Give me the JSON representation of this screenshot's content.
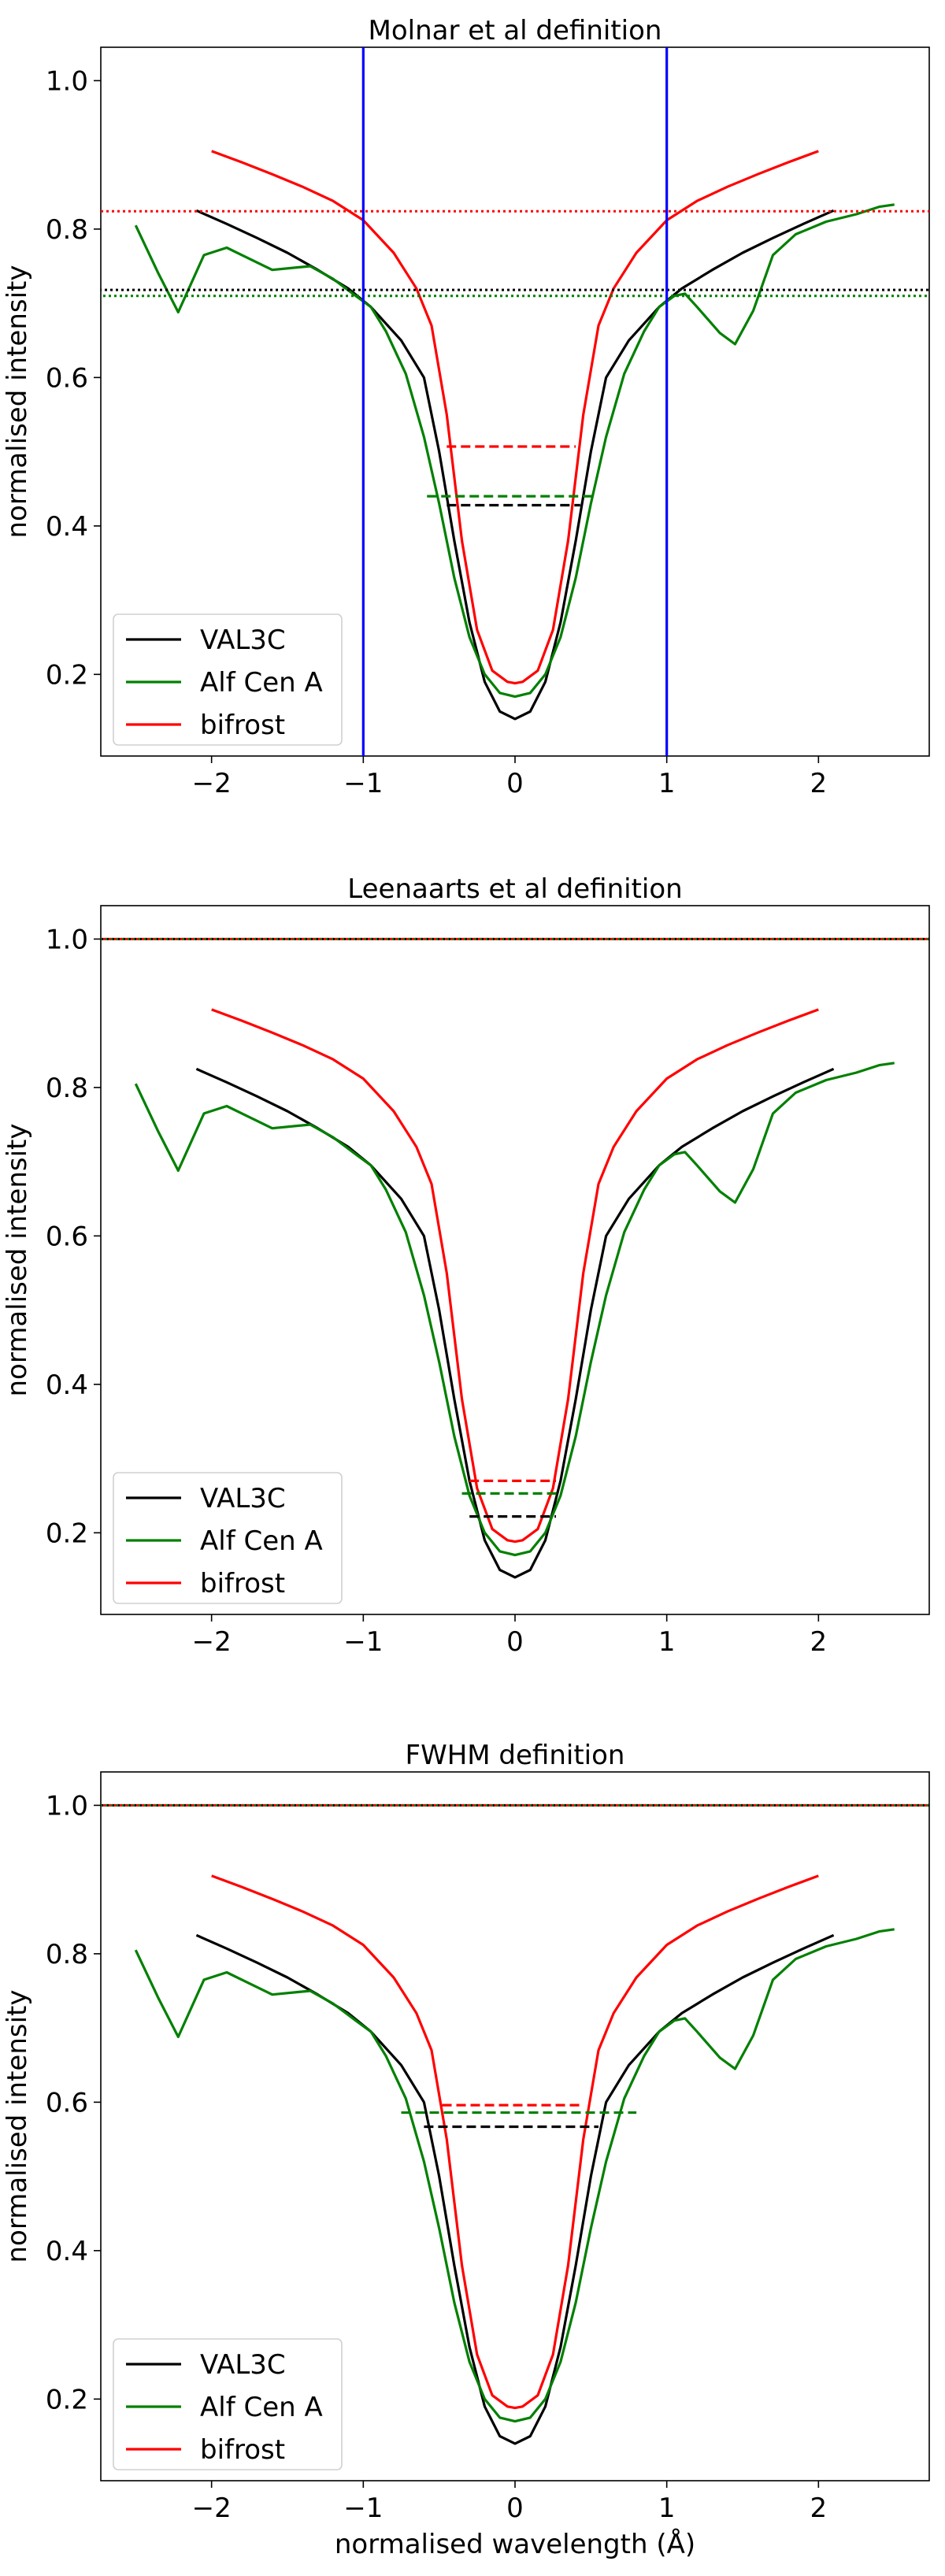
{
  "figure": {
    "xlabel": "normalised wavelength (Å)",
    "ylabel": "normalised intensity"
  },
  "chart_data": [
    {
      "type": "line",
      "title": "Molnar et al definition",
      "xlabel": "",
      "ylabel": "normalised intensity",
      "xlim": [
        -2.73,
        2.73
      ],
      "ylim": [
        0.09,
        1.045
      ],
      "xticks": [
        -2,
        -1,
        0,
        1,
        2
      ],
      "yticks": [
        0.2,
        0.4,
        0.6,
        0.8,
        1.0
      ],
      "legend": {
        "position": "bottom-left",
        "entries": [
          "VAL3C",
          "Alf Cen A",
          "bifrost"
        ]
      },
      "series": [
        {
          "name": "VAL3C",
          "color": "#000000",
          "x": [
            -2.1,
            -1.9,
            -1.7,
            -1.5,
            -1.3,
            -1.1,
            -0.95,
            -0.75,
            -0.6,
            -0.5,
            -0.4,
            -0.3,
            -0.2,
            -0.1,
            0,
            0.1,
            0.2,
            0.3,
            0.4,
            0.5,
            0.6,
            0.75,
            0.95,
            1.1,
            1.3,
            1.5,
            1.7,
            1.9,
            2.1
          ],
          "y": [
            0.825,
            0.807,
            0.788,
            0.768,
            0.745,
            0.72,
            0.695,
            0.65,
            0.6,
            0.5,
            0.38,
            0.27,
            0.19,
            0.15,
            0.14,
            0.15,
            0.19,
            0.27,
            0.38,
            0.5,
            0.6,
            0.65,
            0.695,
            0.72,
            0.745,
            0.768,
            0.788,
            0.807,
            0.825
          ]
        },
        {
          "name": "Alf Cen A",
          "color": "#008000",
          "x": [
            -2.5,
            -2.35,
            -2.22,
            -2.05,
            -1.9,
            -1.8,
            -1.6,
            -1.35,
            -1.2,
            -1.05,
            -0.95,
            -0.85,
            -0.72,
            -0.6,
            -0.5,
            -0.4,
            -0.3,
            -0.2,
            -0.1,
            0,
            0.1,
            0.2,
            0.3,
            0.4,
            0.5,
            0.6,
            0.72,
            0.85,
            0.95,
            1.05,
            1.12,
            1.2,
            1.35,
            1.45,
            1.57,
            1.7,
            1.85,
            2.05,
            2.25,
            2.4,
            2.5
          ],
          "y": [
            0.805,
            0.74,
            0.688,
            0.765,
            0.775,
            0.765,
            0.745,
            0.75,
            0.733,
            0.71,
            0.695,
            0.662,
            0.605,
            0.52,
            0.43,
            0.33,
            0.25,
            0.2,
            0.175,
            0.17,
            0.175,
            0.2,
            0.25,
            0.33,
            0.43,
            0.52,
            0.605,
            0.662,
            0.695,
            0.71,
            0.713,
            0.695,
            0.66,
            0.645,
            0.69,
            0.765,
            0.793,
            0.81,
            0.82,
            0.83,
            0.833
          ]
        },
        {
          "name": "bifrost",
          "color": "#ff0000",
          "x": [
            -2.0,
            -1.8,
            -1.6,
            -1.4,
            -1.2,
            -1.0,
            -0.8,
            -0.65,
            -0.55,
            -0.45,
            -0.35,
            -0.25,
            -0.15,
            -0.05,
            0,
            0.05,
            0.15,
            0.25,
            0.35,
            0.45,
            0.55,
            0.65,
            0.8,
            1.0,
            1.2,
            1.4,
            1.6,
            1.8,
            2.0
          ],
          "y": [
            0.905,
            0.89,
            0.874,
            0.857,
            0.838,
            0.812,
            0.768,
            0.72,
            0.67,
            0.55,
            0.38,
            0.26,
            0.205,
            0.19,
            0.188,
            0.19,
            0.205,
            0.26,
            0.38,
            0.55,
            0.67,
            0.72,
            0.768,
            0.812,
            0.838,
            0.857,
            0.874,
            0.89,
            0.905
          ]
        }
      ],
      "hlines_dotted": [
        {
          "y": 0.824,
          "color": "#ff0000"
        },
        {
          "y": 0.718,
          "color": "#000000"
        },
        {
          "y": 0.71,
          "color": "#008000"
        }
      ],
      "vlines": [
        {
          "x": -1,
          "color": "#0000ff"
        },
        {
          "x": 1,
          "color": "#0000ff"
        }
      ],
      "width_segments": [
        {
          "y": 0.507,
          "x0": -0.45,
          "x1": 0.4,
          "color": "#ff0000"
        },
        {
          "y": 0.44,
          "x0": -0.58,
          "x1": 0.53,
          "color": "#008000"
        },
        {
          "y": 0.428,
          "x0": -0.45,
          "x1": 0.43,
          "color": "#000000"
        }
      ]
    },
    {
      "type": "line",
      "title": "Leenaarts et al definition",
      "xlabel": "",
      "ylabel": "normalised intensity",
      "xlim": [
        -2.73,
        2.73
      ],
      "ylim": [
        0.09,
        1.045
      ],
      "xticks": [
        -2,
        -1,
        0,
        1,
        2
      ],
      "yticks": [
        0.2,
        0.4,
        0.6,
        0.8,
        1.0
      ],
      "legend": {
        "position": "bottom-left",
        "entries": [
          "VAL3C",
          "Alf Cen A",
          "bifrost"
        ]
      },
      "series": [
        {
          "name": "VAL3C",
          "color": "#000000",
          "x": [
            -2.1,
            -1.9,
            -1.7,
            -1.5,
            -1.3,
            -1.1,
            -0.95,
            -0.75,
            -0.6,
            -0.5,
            -0.4,
            -0.3,
            -0.2,
            -0.1,
            0,
            0.1,
            0.2,
            0.3,
            0.4,
            0.5,
            0.6,
            0.75,
            0.95,
            1.1,
            1.3,
            1.5,
            1.7,
            1.9,
            2.1
          ],
          "y": [
            0.825,
            0.807,
            0.788,
            0.768,
            0.745,
            0.72,
            0.695,
            0.65,
            0.6,
            0.5,
            0.38,
            0.27,
            0.19,
            0.15,
            0.14,
            0.15,
            0.19,
            0.27,
            0.38,
            0.5,
            0.6,
            0.65,
            0.695,
            0.72,
            0.745,
            0.768,
            0.788,
            0.807,
            0.825
          ]
        },
        {
          "name": "Alf Cen A",
          "color": "#008000",
          "x": [
            -2.5,
            -2.35,
            -2.22,
            -2.05,
            -1.9,
            -1.8,
            -1.6,
            -1.35,
            -1.2,
            -1.05,
            -0.95,
            -0.85,
            -0.72,
            -0.6,
            -0.5,
            -0.4,
            -0.3,
            -0.2,
            -0.1,
            0,
            0.1,
            0.2,
            0.3,
            0.4,
            0.5,
            0.6,
            0.72,
            0.85,
            0.95,
            1.05,
            1.12,
            1.2,
            1.35,
            1.45,
            1.57,
            1.7,
            1.85,
            2.05,
            2.25,
            2.4,
            2.5
          ],
          "y": [
            0.805,
            0.74,
            0.688,
            0.765,
            0.775,
            0.765,
            0.745,
            0.75,
            0.733,
            0.71,
            0.695,
            0.662,
            0.605,
            0.52,
            0.43,
            0.33,
            0.25,
            0.2,
            0.175,
            0.17,
            0.175,
            0.2,
            0.25,
            0.33,
            0.43,
            0.52,
            0.605,
            0.662,
            0.695,
            0.71,
            0.713,
            0.695,
            0.66,
            0.645,
            0.69,
            0.765,
            0.793,
            0.81,
            0.82,
            0.83,
            0.833
          ]
        },
        {
          "name": "bifrost",
          "color": "#ff0000",
          "x": [
            -2.0,
            -1.8,
            -1.6,
            -1.4,
            -1.2,
            -1.0,
            -0.8,
            -0.65,
            -0.55,
            -0.45,
            -0.35,
            -0.25,
            -0.15,
            -0.05,
            0,
            0.05,
            0.15,
            0.25,
            0.35,
            0.45,
            0.55,
            0.65,
            0.8,
            1.0,
            1.2,
            1.4,
            1.6,
            1.8,
            2.0
          ],
          "y": [
            0.905,
            0.89,
            0.874,
            0.857,
            0.838,
            0.812,
            0.768,
            0.72,
            0.67,
            0.55,
            0.38,
            0.26,
            0.205,
            0.19,
            0.188,
            0.19,
            0.205,
            0.26,
            0.38,
            0.55,
            0.67,
            0.72,
            0.768,
            0.812,
            0.838,
            0.857,
            0.874,
            0.89,
            0.905
          ]
        }
      ],
      "hlines_dotted": [
        {
          "y": 1.0,
          "color": "#000000"
        },
        {
          "y": 1.0,
          "color": "#008000"
        },
        {
          "y": 1.0,
          "color": "#ff0000"
        }
      ],
      "vlines": [],
      "width_segments": [
        {
          "y": 0.27,
          "x0": -0.3,
          "x1": 0.27,
          "color": "#ff0000"
        },
        {
          "y": 0.253,
          "x0": -0.35,
          "x1": 0.3,
          "color": "#008000"
        },
        {
          "y": 0.222,
          "x0": -0.3,
          "x1": 0.27,
          "color": "#000000"
        }
      ]
    },
    {
      "type": "line",
      "title": "FWHM definition",
      "xlabel": "normalised wavelength (Å)",
      "ylabel": "normalised intensity",
      "xlim": [
        -2.73,
        2.73
      ],
      "ylim": [
        0.09,
        1.045
      ],
      "xticks": [
        -2,
        -1,
        0,
        1,
        2
      ],
      "yticks": [
        0.2,
        0.4,
        0.6,
        0.8,
        1.0
      ],
      "legend": {
        "position": "bottom-left",
        "entries": [
          "VAL3C",
          "Alf Cen A",
          "bifrost"
        ]
      },
      "series": [
        {
          "name": "VAL3C",
          "color": "#000000",
          "x": [
            -2.1,
            -1.9,
            -1.7,
            -1.5,
            -1.3,
            -1.1,
            -0.95,
            -0.75,
            -0.6,
            -0.5,
            -0.4,
            -0.3,
            -0.2,
            -0.1,
            0,
            0.1,
            0.2,
            0.3,
            0.4,
            0.5,
            0.6,
            0.75,
            0.95,
            1.1,
            1.3,
            1.5,
            1.7,
            1.9,
            2.1
          ],
          "y": [
            0.825,
            0.807,
            0.788,
            0.768,
            0.745,
            0.72,
            0.695,
            0.65,
            0.6,
            0.5,
            0.38,
            0.27,
            0.19,
            0.15,
            0.14,
            0.15,
            0.19,
            0.27,
            0.38,
            0.5,
            0.6,
            0.65,
            0.695,
            0.72,
            0.745,
            0.768,
            0.788,
            0.807,
            0.825
          ]
        },
        {
          "name": "Alf Cen A",
          "color": "#008000",
          "x": [
            -2.5,
            -2.35,
            -2.22,
            -2.05,
            -1.9,
            -1.8,
            -1.6,
            -1.35,
            -1.2,
            -1.05,
            -0.95,
            -0.85,
            -0.72,
            -0.6,
            -0.5,
            -0.4,
            -0.3,
            -0.2,
            -0.1,
            0,
            0.1,
            0.2,
            0.3,
            0.4,
            0.5,
            0.6,
            0.72,
            0.85,
            0.95,
            1.05,
            1.12,
            1.2,
            1.35,
            1.45,
            1.57,
            1.7,
            1.85,
            2.05,
            2.25,
            2.4,
            2.5
          ],
          "y": [
            0.805,
            0.74,
            0.688,
            0.765,
            0.775,
            0.765,
            0.745,
            0.75,
            0.733,
            0.71,
            0.695,
            0.662,
            0.605,
            0.52,
            0.43,
            0.33,
            0.25,
            0.2,
            0.175,
            0.17,
            0.175,
            0.2,
            0.25,
            0.33,
            0.43,
            0.52,
            0.605,
            0.662,
            0.695,
            0.71,
            0.713,
            0.695,
            0.66,
            0.645,
            0.69,
            0.765,
            0.793,
            0.81,
            0.82,
            0.83,
            0.833
          ]
        },
        {
          "name": "bifrost",
          "color": "#ff0000",
          "x": [
            -2.0,
            -1.8,
            -1.6,
            -1.4,
            -1.2,
            -1.0,
            -0.8,
            -0.65,
            -0.55,
            -0.45,
            -0.35,
            -0.25,
            -0.15,
            -0.05,
            0,
            0.05,
            0.15,
            0.25,
            0.35,
            0.45,
            0.55,
            0.65,
            0.8,
            1.0,
            1.2,
            1.4,
            1.6,
            1.8,
            2.0
          ],
          "y": [
            0.905,
            0.89,
            0.874,
            0.857,
            0.838,
            0.812,
            0.768,
            0.72,
            0.67,
            0.55,
            0.38,
            0.26,
            0.205,
            0.19,
            0.188,
            0.19,
            0.205,
            0.26,
            0.38,
            0.55,
            0.67,
            0.72,
            0.768,
            0.812,
            0.838,
            0.857,
            0.874,
            0.89,
            0.905
          ]
        }
      ],
      "hlines_dotted": [
        {
          "y": 1.0,
          "color": "#000000"
        },
        {
          "y": 1.0,
          "color": "#008000"
        },
        {
          "y": 1.0,
          "color": "#ff0000"
        }
      ],
      "vlines": [],
      "width_segments": [
        {
          "y": 0.596,
          "x0": -0.48,
          "x1": 0.45,
          "color": "#ff0000"
        },
        {
          "y": 0.586,
          "x0": -0.75,
          "x1": 0.8,
          "color": "#008000"
        },
        {
          "y": 0.567,
          "x0": -0.6,
          "x1": 0.55,
          "color": "#000000"
        }
      ]
    }
  ]
}
